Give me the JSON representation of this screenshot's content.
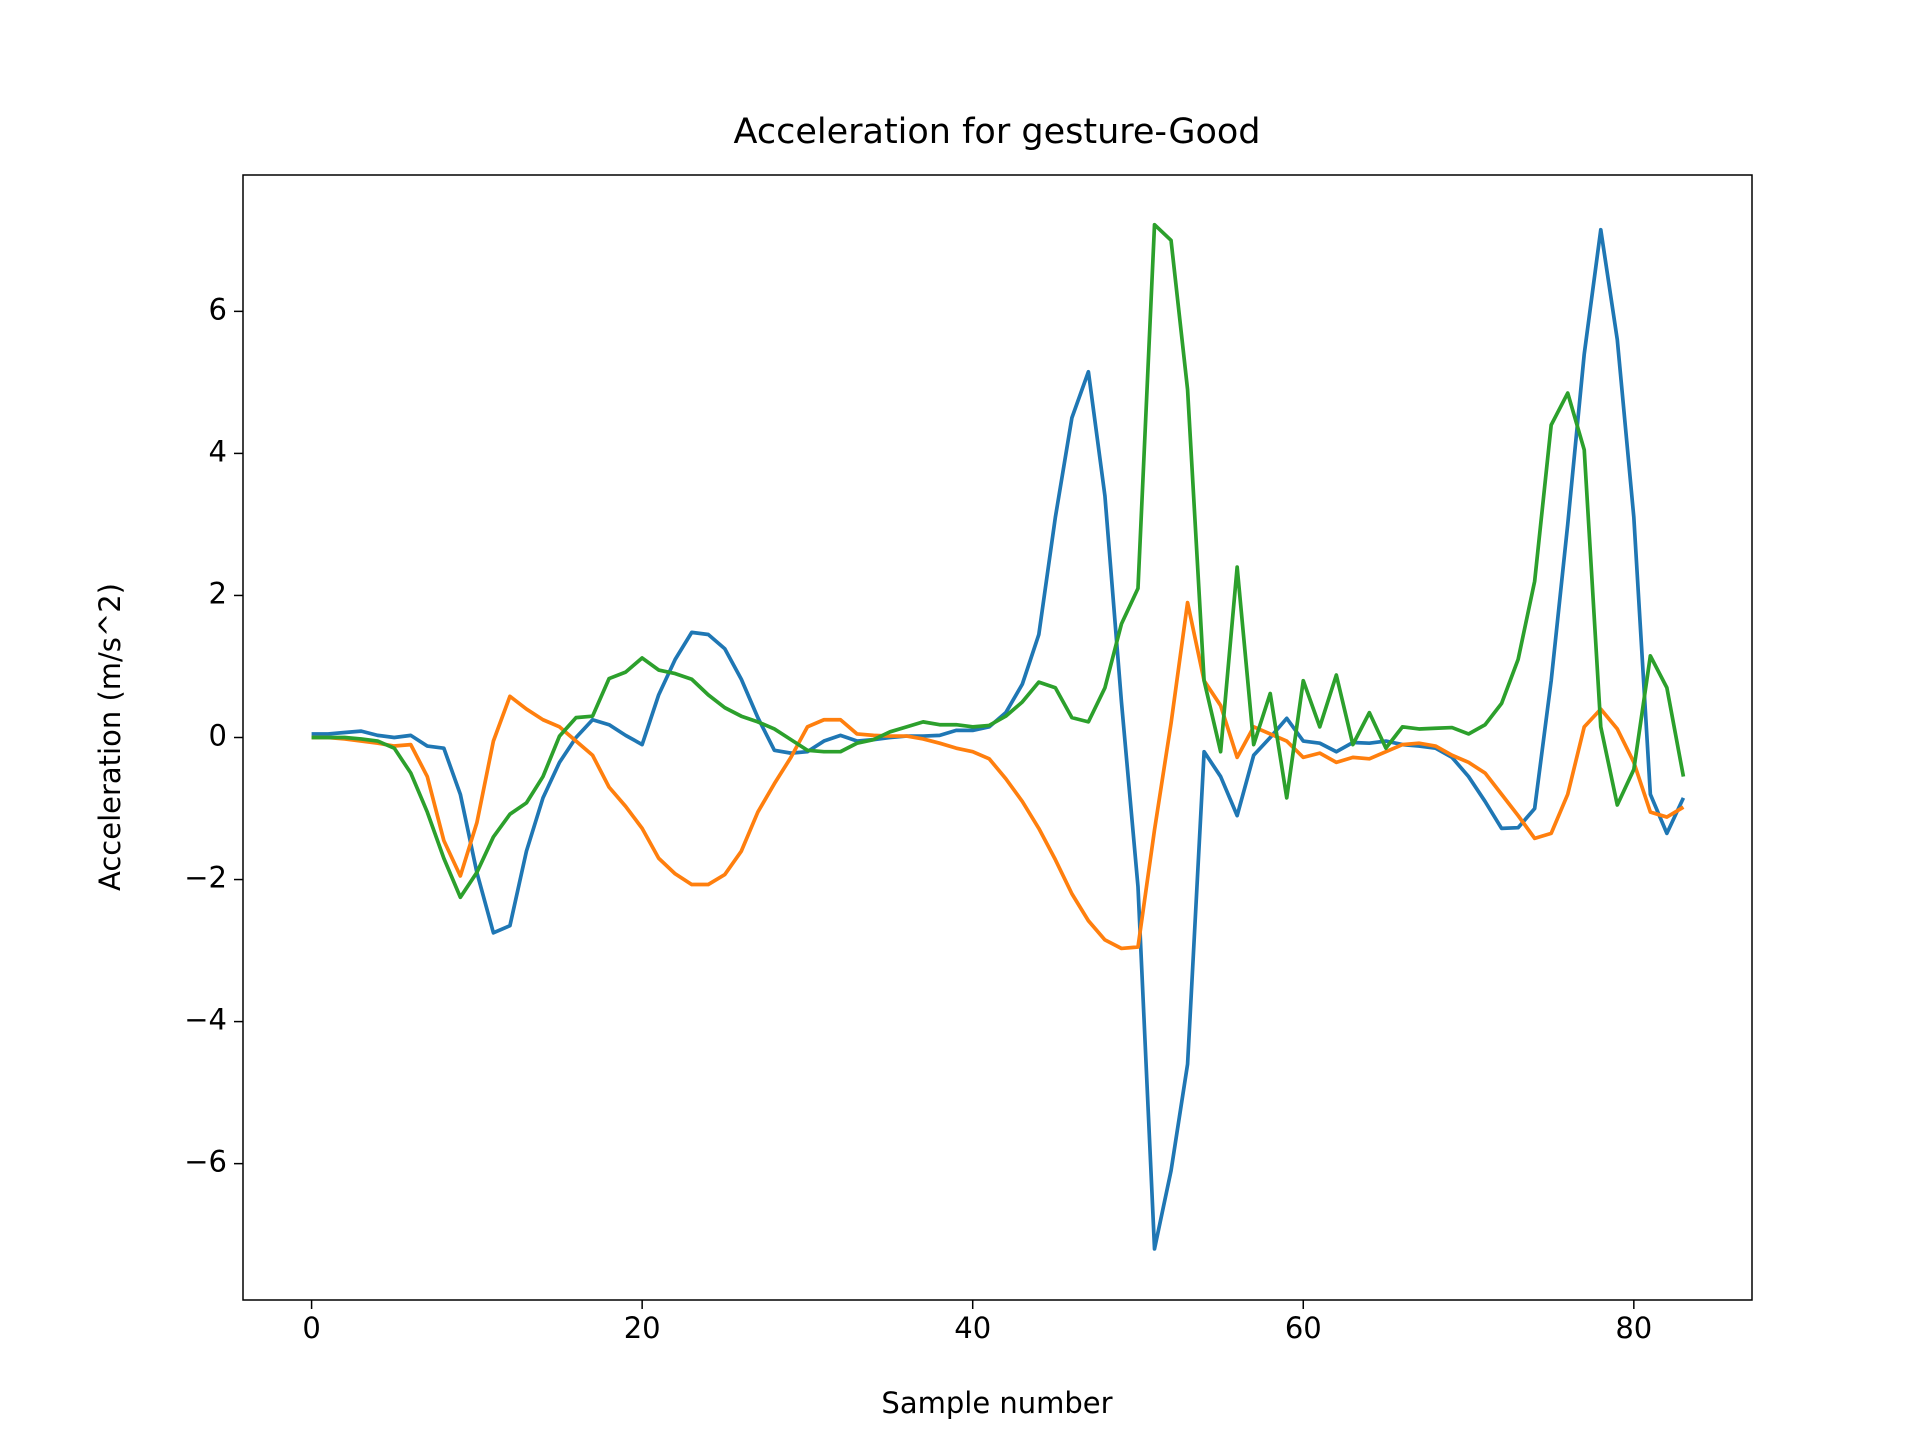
{
  "chart_data": {
    "type": "line",
    "title": "Acceleration for gesture-Good",
    "xlabel": "Sample number",
    "ylabel": "Acceleration (m/s^2)",
    "x": [
      0,
      1,
      2,
      3,
      4,
      5,
      6,
      7,
      8,
      9,
      10,
      11,
      12,
      13,
      14,
      15,
      16,
      17,
      18,
      19,
      20,
      21,
      22,
      23,
      24,
      25,
      26,
      27,
      28,
      29,
      30,
      31,
      32,
      33,
      34,
      35,
      36,
      37,
      38,
      39,
      40,
      41,
      42,
      43,
      44,
      45,
      46,
      47,
      48,
      49,
      50,
      51,
      52,
      53,
      54,
      55,
      56,
      57,
      58,
      59,
      60,
      61,
      62,
      63,
      64,
      65,
      66,
      67,
      68,
      69,
      70,
      71,
      72,
      73,
      74,
      75,
      76,
      77,
      78,
      79,
      80,
      81,
      82,
      83
    ],
    "series": [
      {
        "color": "#1f77b4",
        "values": [
          0.05,
          0.05,
          0.07,
          0.09,
          0.03,
          0.0,
          0.03,
          -0.12,
          -0.15,
          -0.8,
          -1.9,
          -2.75,
          -2.65,
          -1.6,
          -0.85,
          -0.35,
          0.0,
          0.25,
          0.18,
          0.03,
          -0.1,
          0.6,
          1.1,
          1.48,
          1.45,
          1.25,
          0.82,
          0.28,
          -0.18,
          -0.22,
          -0.2,
          -0.05,
          0.03,
          -0.05,
          -0.03,
          0.0,
          0.02,
          0.02,
          0.03,
          0.1,
          0.1,
          0.15,
          0.35,
          0.75,
          1.45,
          3.1,
          4.5,
          5.15,
          3.4,
          0.5,
          -2.1,
          -7.2,
          -6.1,
          -4.6,
          -0.2,
          -0.55,
          -1.1,
          -0.25,
          0.0,
          0.27,
          -0.05,
          -0.08,
          -0.2,
          -0.07,
          -0.08,
          -0.05,
          -0.1,
          -0.12,
          -0.15,
          -0.28,
          -0.55,
          -0.9,
          -1.28,
          -1.27,
          -1.0,
          0.8,
          3.0,
          5.4,
          7.15,
          5.6,
          3.1,
          -0.8,
          -1.35,
          -0.85
        ]
      },
      {
        "color": "#ff7f0e",
        "values": [
          0,
          0,
          -0.02,
          -0.05,
          -0.08,
          -0.12,
          -0.1,
          -0.55,
          -1.45,
          -1.95,
          -1.2,
          -0.05,
          0.58,
          0.4,
          0.25,
          0.15,
          -0.05,
          -0.25,
          -0.7,
          -0.97,
          -1.28,
          -1.7,
          -1.92,
          -2.07,
          -2.07,
          -1.93,
          -1.6,
          -1.05,
          -0.65,
          -0.28,
          0.15,
          0.25,
          0.25,
          0.05,
          0.03,
          0.02,
          0.02,
          -0.02,
          -0.08,
          -0.15,
          -0.2,
          -0.3,
          -0.58,
          -0.9,
          -1.28,
          -1.72,
          -2.2,
          -2.58,
          -2.85,
          -2.97,
          -2.95,
          -1.3,
          0.2,
          1.9,
          0.8,
          0.45,
          -0.28,
          0.15,
          0.05,
          -0.05,
          -0.28,
          -0.22,
          -0.35,
          -0.28,
          -0.3,
          -0.2,
          -0.1,
          -0.08,
          -0.12,
          -0.25,
          -0.35,
          -0.5,
          -0.8,
          -1.1,
          -1.42,
          -1.35,
          -0.8,
          0.15,
          0.4,
          0.12,
          -0.35,
          -1.05,
          -1.12,
          -0.98
        ]
      },
      {
        "color": "#2ca02c",
        "values": [
          0,
          0,
          0,
          -0.02,
          -0.05,
          -0.15,
          -0.5,
          -1.05,
          -1.7,
          -2.25,
          -1.9,
          -1.4,
          -1.08,
          -0.92,
          -0.55,
          0.02,
          0.28,
          0.3,
          0.83,
          0.92,
          1.12,
          0.95,
          0.9,
          0.82,
          0.6,
          0.42,
          0.3,
          0.22,
          0.12,
          -0.03,
          -0.18,
          -0.2,
          -0.2,
          -0.08,
          -0.03,
          0.08,
          0.15,
          0.22,
          0.18,
          0.18,
          0.15,
          0.17,
          0.3,
          0.5,
          0.78,
          0.7,
          0.28,
          0.22,
          0.7,
          1.6,
          2.1,
          7.22,
          7.0,
          4.9,
          0.8,
          -0.2,
          2.4,
          -0.1,
          0.62,
          -0.85,
          0.8,
          0.15,
          0.88,
          -0.1,
          0.35,
          -0.15,
          0.15,
          0.12,
          0.13,
          0.14,
          0.05,
          0.18,
          0.48,
          1.1,
          2.2,
          4.4,
          4.85,
          4.05,
          0.15,
          -0.95,
          -0.45,
          1.15,
          0.7,
          -0.55
        ]
      }
    ],
    "xlim": [
      -4.15,
      87.15
    ],
    "ylim": [
      -7.92,
      7.92
    ],
    "xticks": [
      0,
      20,
      40,
      60,
      80
    ],
    "yticks": [
      {
        "value": -6,
        "label": "−6"
      },
      {
        "value": -4,
        "label": "−4"
      },
      {
        "value": -2,
        "label": "−2"
      },
      0,
      2,
      4,
      6
    ]
  }
}
